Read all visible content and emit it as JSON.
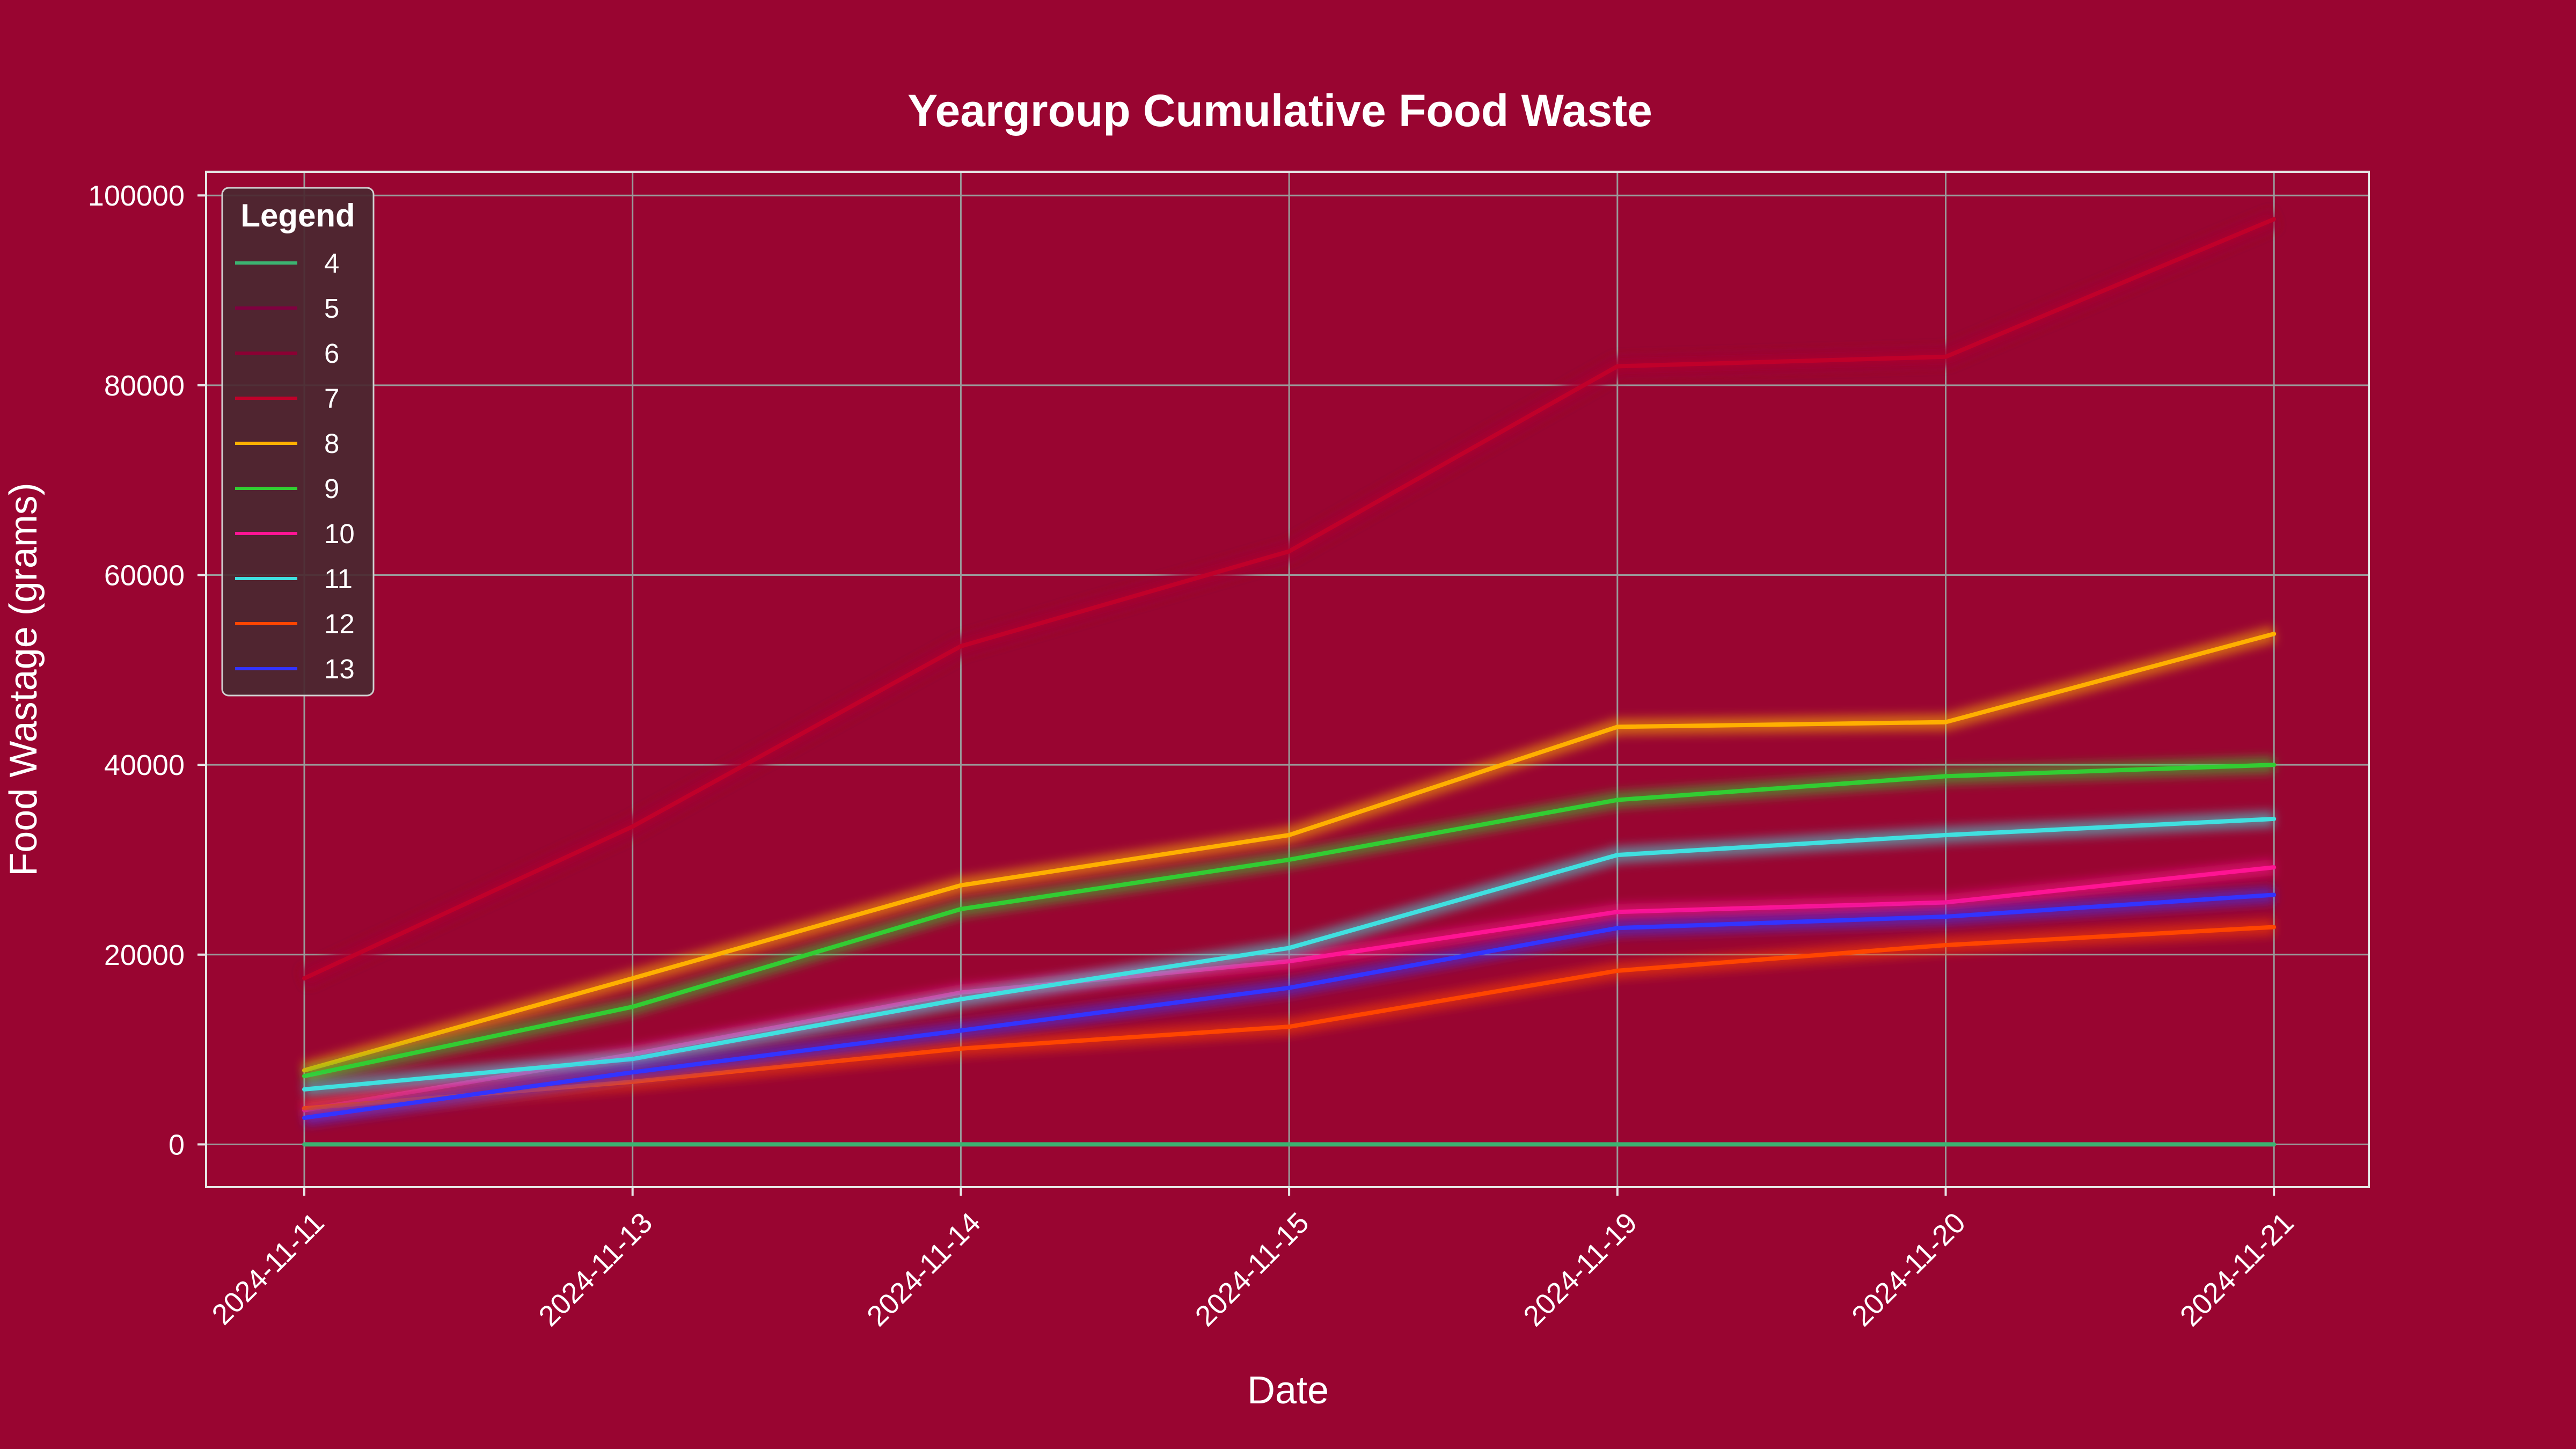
{
  "chart_data": {
    "type": "line",
    "title": "Yeargroup Cumulative Food Waste",
    "xlabel": "Date",
    "ylabel": "Food Wastage (grams)",
    "categories": [
      "2024-11-11",
      "2024-11-13",
      "2024-11-14",
      "2024-11-15",
      "2024-11-19",
      "2024-11-20",
      "2024-11-21"
    ],
    "yticks": [
      "0",
      "20000",
      "40000",
      "60000",
      "80000",
      "100000"
    ],
    "ylim": [
      -4500,
      102500
    ],
    "grid": true,
    "legend": {
      "title": "Legend",
      "placement": "top-left"
    },
    "background_color": "#990531",
    "series": [
      {
        "name": "4",
        "color": "#3cb371",
        "values": [
          0,
          0,
          0,
          0,
          0,
          0,
          0
        ]
      },
      {
        "name": "5",
        "color": "#800040",
        "values": [
          17500,
          33500,
          52500,
          62500,
          82000,
          83000,
          97500
        ]
      },
      {
        "name": "6",
        "color": "#8b0033",
        "values": [
          17500,
          33500,
          52500,
          62500,
          82000,
          83000,
          97500
        ]
      },
      {
        "name": "7",
        "color": "#c0002a",
        "values": [
          17500,
          33500,
          52500,
          62500,
          82000,
          83000,
          97500
        ]
      },
      {
        "name": "8",
        "color": "#ffb000",
        "values": [
          7800,
          17500,
          27300,
          32600,
          44000,
          44500,
          53800
        ]
      },
      {
        "name": "9",
        "color": "#32cd32",
        "values": [
          7200,
          14500,
          24800,
          30000,
          36300,
          38800,
          40000
        ]
      },
      {
        "name": "10",
        "color": "#ff1493",
        "values": [
          3600,
          9500,
          16000,
          19300,
          24500,
          25500,
          29200
        ]
      },
      {
        "name": "11",
        "color": "#40e0e0",
        "values": [
          5800,
          9000,
          15300,
          20700,
          30500,
          32600,
          34300
        ]
      },
      {
        "name": "12",
        "color": "#ff4500",
        "values": [
          3800,
          6600,
          10100,
          12400,
          18300,
          21000,
          22900
        ]
      },
      {
        "name": "13",
        "color": "#3333ff",
        "values": [
          2800,
          7600,
          12000,
          16500,
          22800,
          24000,
          26300
        ]
      }
    ]
  }
}
